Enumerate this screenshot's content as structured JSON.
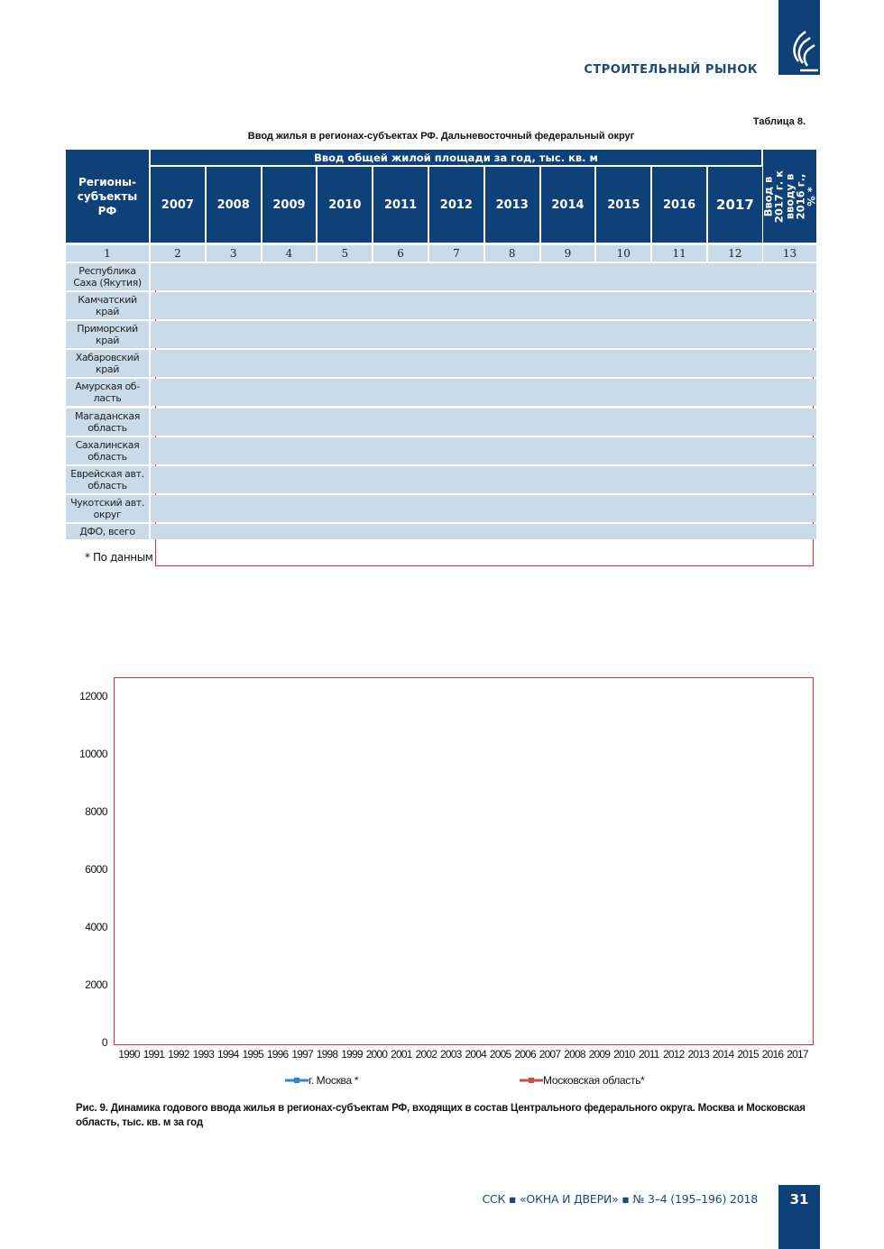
{
  "header": {
    "section": "СТРОИТЕЛЬНЫЙ РЫНОК",
    "logo_icon": "magazine-logo-icon"
  },
  "table": {
    "number": "Таблица 8.",
    "title": "Ввод жилья в регионах-субъектах РФ. Дальневосточный федеральный округ",
    "col_region": "Регионы-субъекты РФ",
    "group_header": "Ввод общей жилой площади за год, тыс. кв. м",
    "years": [
      "2007",
      "2008",
      "2009",
      "2010",
      "2011",
      "2012",
      "2013",
      "2014",
      "2015",
      "2016",
      "2017"
    ],
    "col_ratio": "Ввод в 2017 г. к вводу в 2016 г., % *",
    "col_numbers": [
      "1",
      "2",
      "3",
      "4",
      "5",
      "6",
      "7",
      "8",
      "9",
      "10",
      "11",
      "12",
      "13"
    ],
    "rows": [
      "Республика Саха (Якутия)",
      "Камчатский край",
      "Приморский край",
      "Хабаровский край",
      "Амурская об-ласть",
      "Магаданская область",
      "Сахалинская область",
      "Еврейская авт. область",
      "Чукотский авт. округ",
      "ДФО, всего"
    ],
    "footnote": "* По данным Р"
  },
  "chart_data": {
    "type": "line",
    "title": "",
    "xlabel": "",
    "ylabel": "",
    "x": [
      "1990",
      "1991",
      "1992",
      "1993",
      "1994",
      "1995",
      "1996",
      "1997",
      "1998",
      "1999",
      "2000",
      "2001",
      "2002",
      "2003",
      "2004",
      "2005",
      "2006",
      "2007",
      "2008",
      "2009",
      "2010",
      "2011",
      "2012",
      "2013",
      "2014",
      "2015",
      "2016",
      "2017"
    ],
    "yticks": [
      "0",
      "2000",
      "4000",
      "6000",
      "8000",
      "10000",
      "12000"
    ],
    "ylim": [
      0,
      12600
    ],
    "legend_position": "bottom",
    "series": [
      {
        "name": "г. Москва *",
        "color": "#3b7fc4"
      },
      {
        "name": "Московская область*",
        "color": "#c0504d"
      }
    ],
    "caption": "Рис. 9. Динамика годового ввода жилья в регионах-субъектам РФ, входящих в состав Центрального федерального округа. Москва и Московская область, тыс. кв. м за год"
  },
  "footer": {
    "text": "ССК ▪ «ОКНА И ДВЕРИ» ▪ № 3–4 (195–196) 2018",
    "page": "31"
  }
}
